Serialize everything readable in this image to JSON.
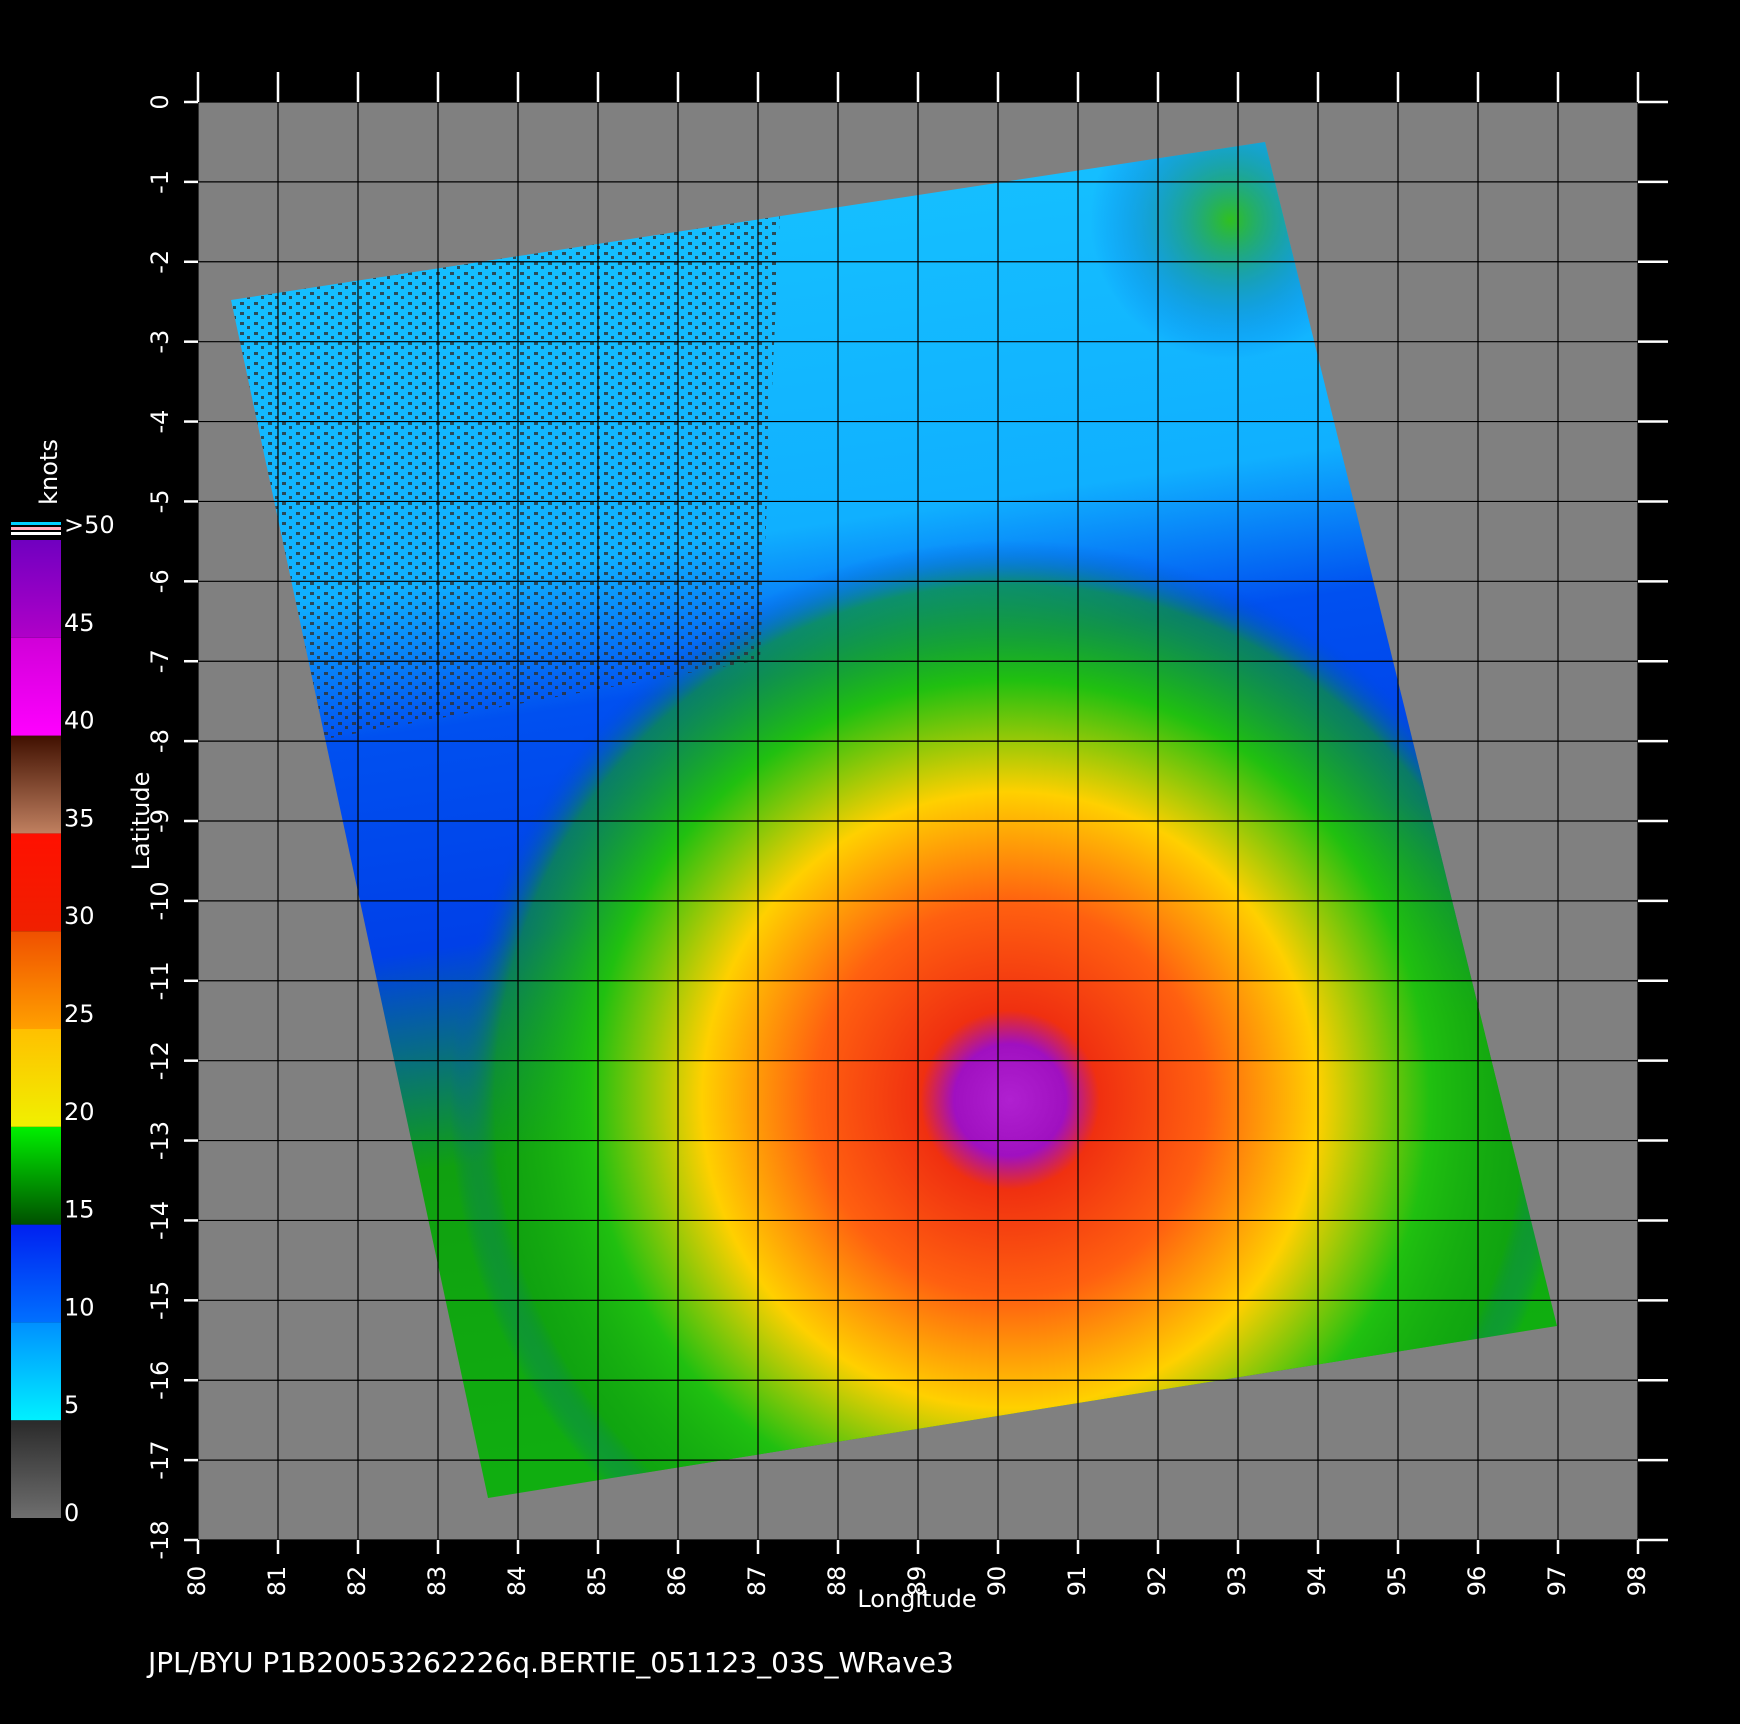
{
  "map": {
    "footer": "JPL/BYU  P1B20053262226q.BERTIE_051123_03S_WRave3",
    "x_label": "Longitude",
    "y_label": "Latitude",
    "xlim": [
      80,
      98
    ],
    "ylim": [
      -18,
      0
    ],
    "xticks": [
      80,
      81,
      82,
      83,
      84,
      85,
      86,
      87,
      88,
      89,
      90,
      91,
      92,
      93,
      94,
      95,
      96,
      97,
      98
    ],
    "yticks": [
      0,
      -1,
      -2,
      -3,
      -4,
      -5,
      -6,
      -7,
      -8,
      -9,
      -10,
      -11,
      -12,
      -13,
      -14,
      -15,
      -16,
      -17,
      -18
    ],
    "colorbar": {
      "label": "knots",
      "range": [
        0,
        50
      ],
      "ticks": [
        0,
        5,
        10,
        15,
        20,
        25,
        30,
        35,
        40,
        45,
        {
          "value": 50,
          "label": ">50"
        }
      ],
      "colors": [
        [
          "#6e6e6e",
          "#2a2a2a"
        ],
        [
          "#00f0ff",
          "#0090ff"
        ],
        [
          "#0070ff",
          "#0020f0"
        ],
        [
          "#005000",
          "#00f000"
        ],
        [
          "#f0f000",
          "#ffc000"
        ],
        [
          "#ffa000",
          "#f05000"
        ],
        [
          "#f02000",
          "#ff1000"
        ],
        [
          "#c08060",
          "#401000"
        ],
        [
          "#ff00ff",
          "#d000d8"
        ],
        [
          "#b000c8",
          "#7000c0"
        ]
      ]
    }
  }
}
